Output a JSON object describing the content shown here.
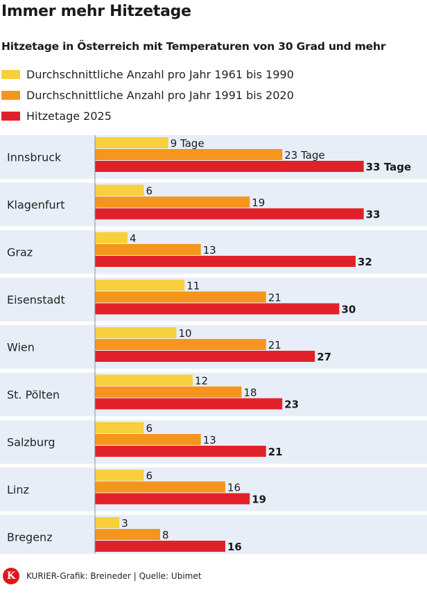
{
  "title": "Immer mehr Hitzetage",
  "subtitle": "Hitzetage in Österreich mit Temperaturen von 30 Grad und mehr",
  "legend": [
    {
      "label": "Durchschnittliche Anzahl pro Jahr 1961 bis 1990",
      "color": "#f8cf3d"
    },
    {
      "label": "Durchschnittliche Anzahl pro Jahr 1991 bis 2020",
      "color": "#f6951e"
    },
    {
      "label": "Hitzetage 2025",
      "color": "#e1212a"
    }
  ],
  "chart_data": {
    "type": "bar",
    "orientation": "horizontal",
    "categories": [
      "Innsbruck",
      "Klagenfurt",
      "Graz",
      "Eisenstadt",
      "Wien",
      "St. Pölten",
      "Salzburg",
      "Linz",
      "Bregenz"
    ],
    "series": [
      {
        "name": "Durchschnittliche Anzahl pro Jahr 1961 bis 1990",
        "values": [
          9,
          6,
          4,
          11,
          10,
          12,
          6,
          6,
          3
        ],
        "color": "#f8cf3d"
      },
      {
        "name": "Durchschnittliche Anzahl pro Jahr 1991 bis 2020",
        "values": [
          23,
          19,
          13,
          21,
          21,
          18,
          13,
          16,
          8
        ],
        "color": "#f6951e"
      },
      {
        "name": "Hitzetage 2025",
        "values": [
          33,
          33,
          32,
          30,
          27,
          23,
          21,
          19,
          16
        ],
        "color": "#e1212a"
      }
    ],
    "first_row_labels": [
      "9 Tage",
      "23 Tage",
      "33 Tage"
    ],
    "row_background": "#e8eef7",
    "axis_color": "#8a8f99"
  },
  "footer": {
    "logo_letter": "K",
    "credit": "KURIER-Grafik: Breineder | Quelle: Ubimet"
  }
}
